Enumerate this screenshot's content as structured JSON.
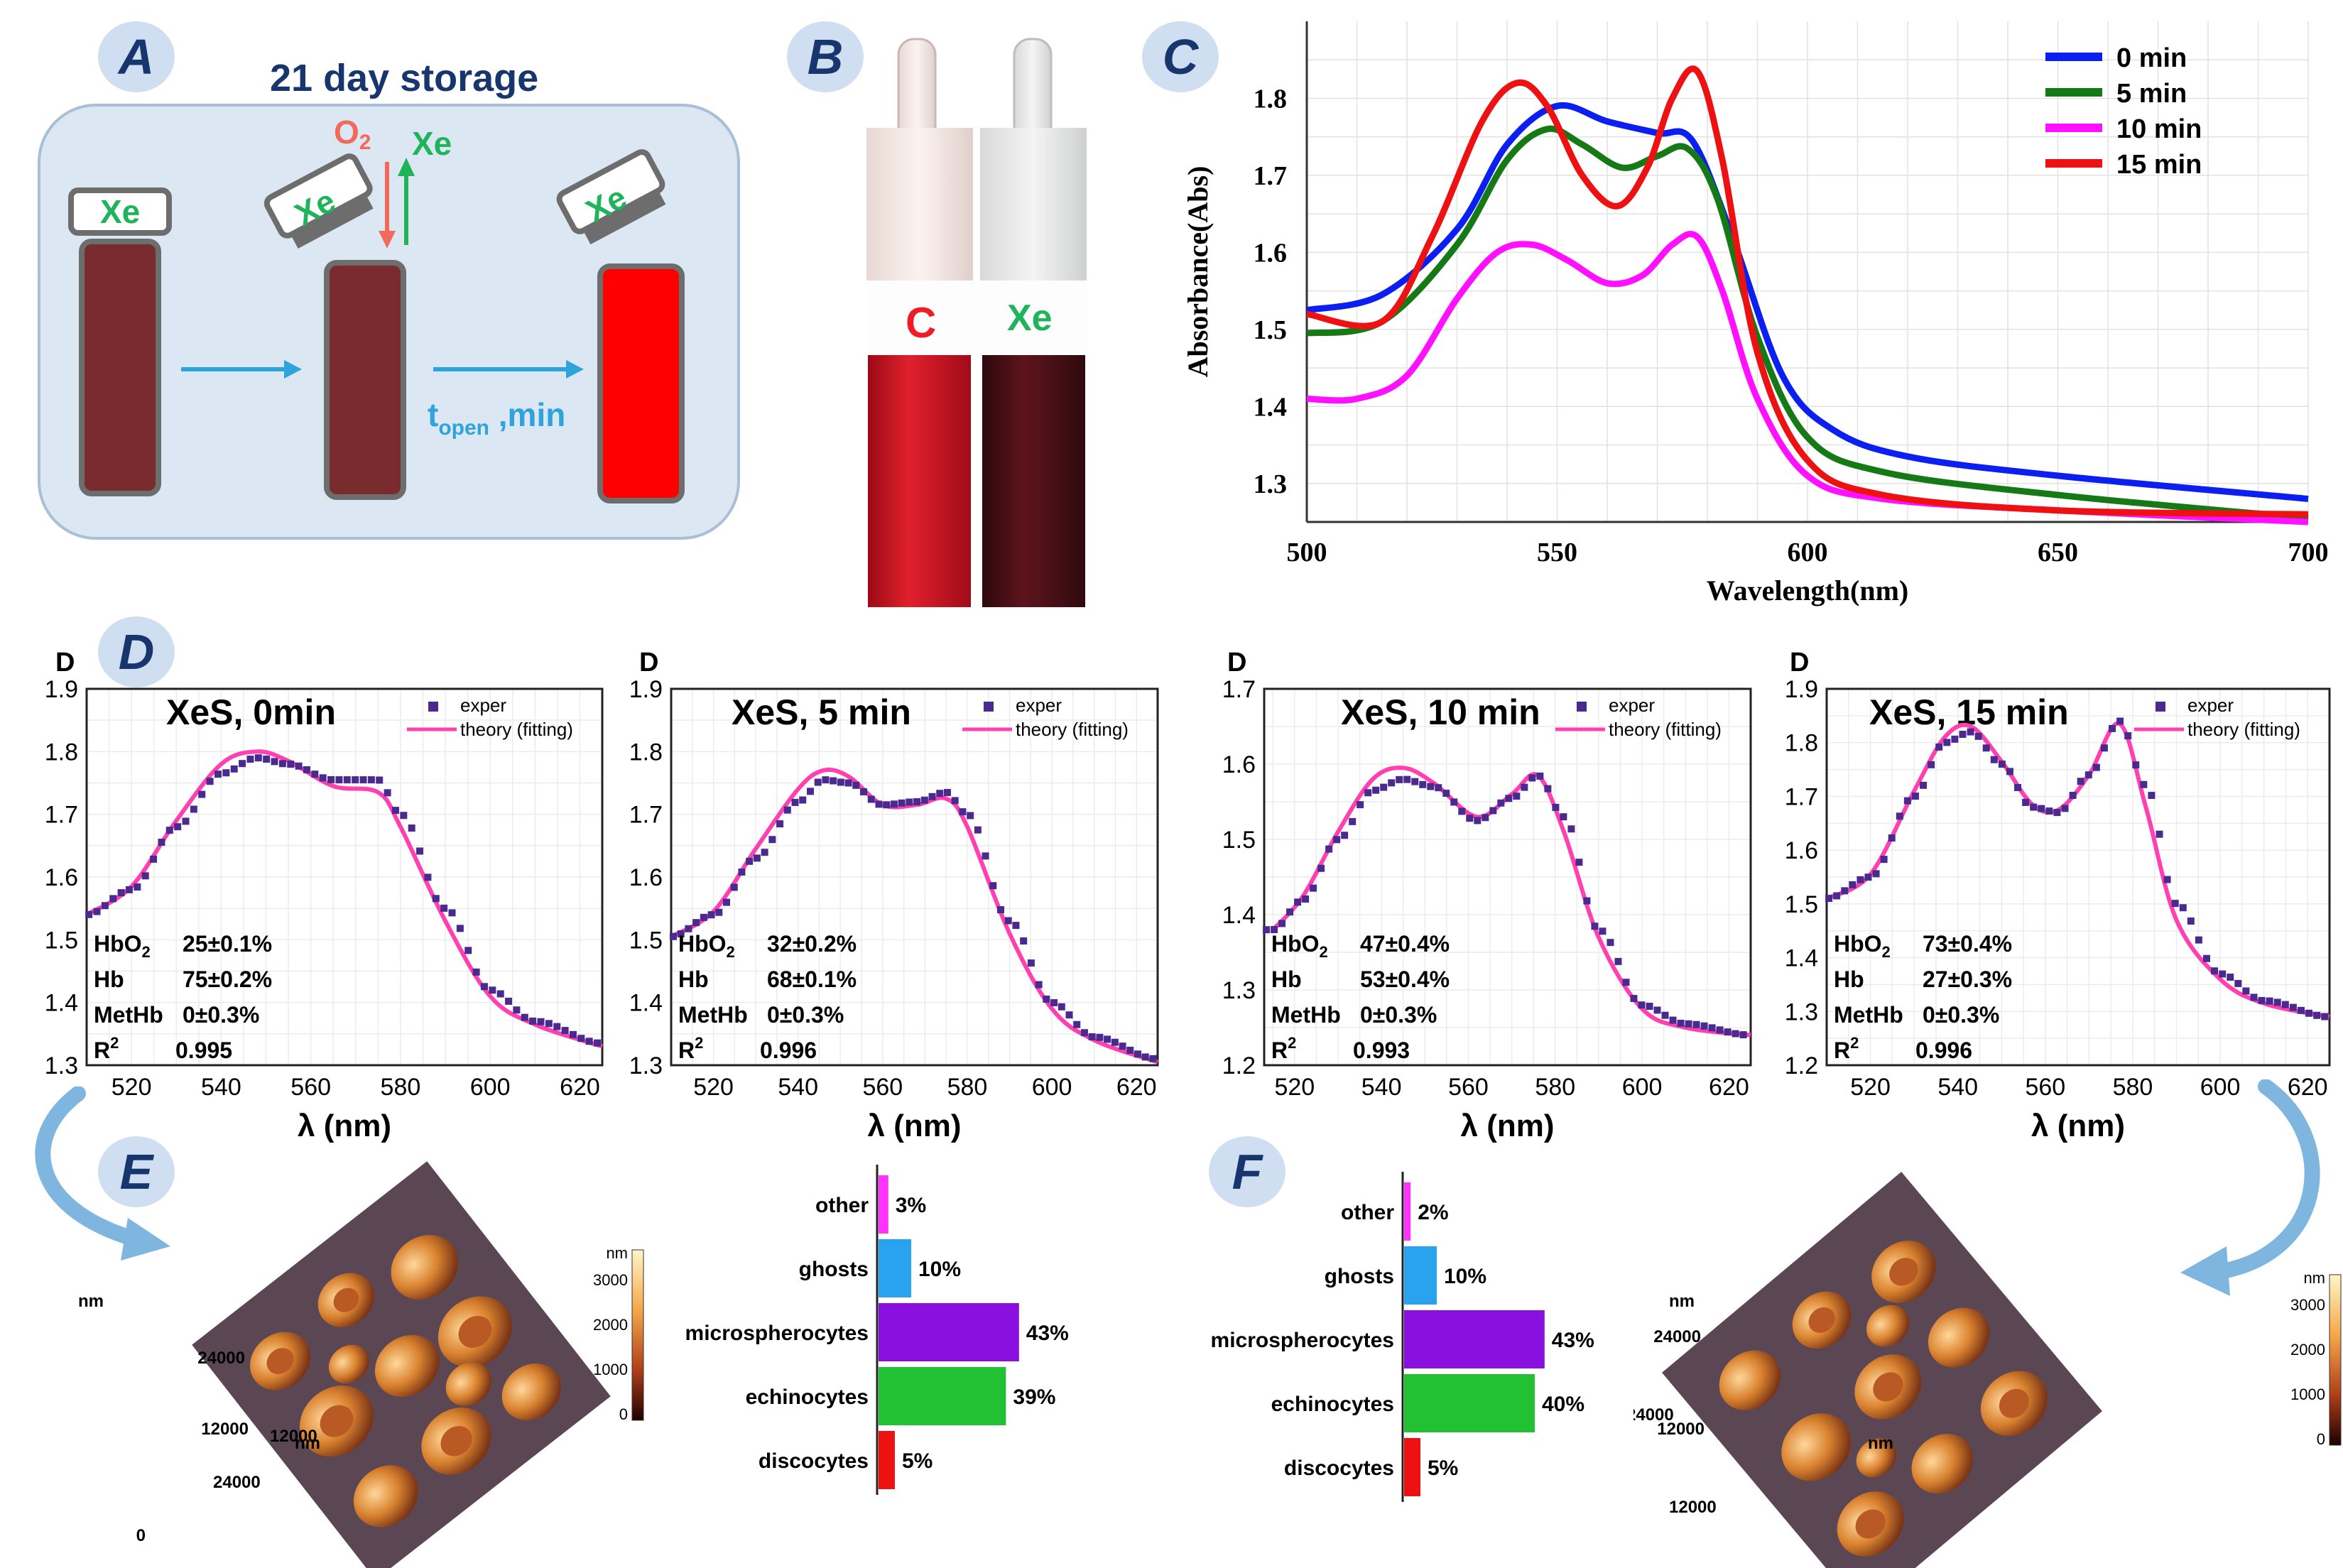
{
  "colors": {
    "xe_green": "#1fb35a",
    "o2_red": "#f26a5a",
    "arrow_blue": "#2ea3dc",
    "badge_bg": "#cfdff1",
    "badge_text": "#17366e",
    "dark_blood": "#7a2b2d",
    "bright_red": "#ff0000",
    "magenta": "#ff40b0",
    "exper": "#4b2a8f"
  },
  "panel_labels": {
    "A": "A",
    "B": "B",
    "C": "C",
    "D": "D",
    "E": "E",
    "F": "F"
  },
  "panelA": {
    "title": "21  day storage",
    "xe": "Xe",
    "o2": "O",
    "o2_sub": "2",
    "t": "t",
    "t_sub": "open",
    "t_unit": " ,min"
  },
  "panelB": {
    "left_label": "C",
    "right_label": "Xe"
  },
  "chart_data": [
    {
      "id": "C",
      "type": "line",
      "title": "",
      "xlabel": "Wavelength(nm)",
      "ylabel": "Absorbance(Abs)",
      "xlim": [
        500,
        700
      ],
      "ylim": [
        1.25,
        1.9
      ],
      "xticks": [
        500,
        550,
        600,
        650,
        700
      ],
      "yticks": [
        1.3,
        1.4,
        1.5,
        1.6,
        1.7,
        1.8
      ],
      "legend": "top-right",
      "series": [
        {
          "name": "0 min",
          "color": "#0b1ff0",
          "x": [
            500,
            515,
            530,
            540,
            550,
            560,
            570,
            577,
            585,
            595,
            605,
            620,
            650,
            700
          ],
          "y": [
            1.525,
            1.545,
            1.63,
            1.74,
            1.79,
            1.77,
            1.755,
            1.745,
            1.62,
            1.44,
            1.37,
            1.335,
            1.31,
            1.28
          ]
        },
        {
          "name": "5 min",
          "color": "#157a15",
          "x": [
            500,
            515,
            530,
            540,
            548,
            555,
            563,
            570,
            576,
            582,
            590,
            600,
            615,
            650,
            700
          ],
          "y": [
            1.495,
            1.51,
            1.61,
            1.72,
            1.76,
            1.74,
            1.71,
            1.725,
            1.735,
            1.67,
            1.49,
            1.36,
            1.315,
            1.285,
            1.255
          ]
        },
        {
          "name": "10 min",
          "color": "#ff10ff",
          "x": [
            500,
            510,
            520,
            530,
            538,
            545,
            552,
            560,
            567,
            573,
            578,
            583,
            590,
            600,
            615,
            650,
            700
          ],
          "y": [
            1.41,
            1.41,
            1.44,
            1.54,
            1.6,
            1.61,
            1.59,
            1.56,
            1.57,
            1.61,
            1.62,
            1.55,
            1.41,
            1.31,
            1.28,
            1.265,
            1.25
          ]
        },
        {
          "name": "15 min",
          "color": "#ee1111",
          "x": [
            500,
            515,
            525,
            535,
            542,
            548,
            555,
            562,
            568,
            573,
            578,
            583,
            590,
            600,
            615,
            650,
            700
          ],
          "y": [
            1.52,
            1.51,
            1.62,
            1.77,
            1.82,
            1.79,
            1.7,
            1.66,
            1.71,
            1.8,
            1.835,
            1.72,
            1.47,
            1.33,
            1.285,
            1.265,
            1.26
          ]
        }
      ]
    },
    {
      "id": "D1",
      "type": "line",
      "title": "XeS, 0min",
      "xlabel": "λ (nm)",
      "ylabel": "D",
      "xlim": [
        510,
        625
      ],
      "ylim": [
        1.3,
        1.9
      ],
      "xticks": [
        520,
        540,
        560,
        580,
        600,
        620
      ],
      "yticks": [
        1.3,
        1.4,
        1.5,
        1.6,
        1.7,
        1.8,
        1.9
      ],
      "legend": "top-right",
      "legend_exper": "exper",
      "legend_theory": "theory (fitting)",
      "series": [
        {
          "name": "exper",
          "x": [
            510,
            520,
            530,
            540,
            548,
            555,
            565,
            575,
            580,
            590,
            600,
            610,
            625
          ],
          "y": [
            1.54,
            1.58,
            1.68,
            1.765,
            1.79,
            1.78,
            1.755,
            1.755,
            1.7,
            1.55,
            1.42,
            1.37,
            1.335
          ]
        },
        {
          "name": "theory (fitting)",
          "x": [
            510,
            520,
            530,
            540,
            548,
            555,
            565,
            575,
            580,
            590,
            600,
            610,
            625
          ],
          "y": [
            1.54,
            1.585,
            1.69,
            1.78,
            1.8,
            1.785,
            1.745,
            1.735,
            1.68,
            1.53,
            1.41,
            1.365,
            1.33
          ]
        }
      ],
      "fit": [
        {
          "label": "HbO",
          "sub": "2",
          "value": "25±0.1%"
        },
        {
          "label": "Hb",
          "sub": "",
          "value": "75±0.2%"
        },
        {
          "label": "MetHb",
          "sub": "",
          "value": "0±0.3%"
        },
        {
          "label": "R",
          "sup": "2",
          "value": "0.995"
        }
      ]
    },
    {
      "id": "D2",
      "type": "line",
      "title": "XeS, 5 min",
      "xlabel": "λ (nm)",
      "ylabel": "D",
      "xlim": [
        510,
        625
      ],
      "ylim": [
        1.3,
        1.9
      ],
      "xticks": [
        520,
        540,
        560,
        580,
        600,
        620
      ],
      "yticks": [
        1.3,
        1.4,
        1.5,
        1.6,
        1.7,
        1.8,
        1.9
      ],
      "legend": "top-right",
      "legend_exper": "exper",
      "legend_theory": "theory (fitting)",
      "series": [
        {
          "name": "exper",
          "x": [
            510,
            520,
            530,
            540,
            546,
            552,
            560,
            568,
            575,
            580,
            590,
            600,
            610,
            625
          ],
          "y": [
            1.505,
            1.54,
            1.63,
            1.72,
            1.755,
            1.75,
            1.715,
            1.72,
            1.735,
            1.7,
            1.53,
            1.4,
            1.345,
            1.31
          ]
        },
        {
          "name": "theory (fitting)",
          "x": [
            510,
            520,
            530,
            540,
            546,
            552,
            560,
            568,
            575,
            580,
            590,
            600,
            610,
            625
          ],
          "y": [
            1.505,
            1.545,
            1.645,
            1.74,
            1.77,
            1.76,
            1.715,
            1.715,
            1.725,
            1.68,
            1.51,
            1.39,
            1.34,
            1.305
          ]
        }
      ],
      "fit": [
        {
          "label": "HbO",
          "sub": "2",
          "value": "32±0.2%"
        },
        {
          "label": "Hb",
          "sub": "",
          "value": "68±0.1%"
        },
        {
          "label": "MetHb",
          "sub": "",
          "value": "0±0.3%"
        },
        {
          "label": "R",
          "sup": "2",
          "value": "0.996"
        }
      ]
    },
    {
      "id": "D3",
      "type": "line",
      "title": "XeS, 10 min",
      "xlabel": "λ (nm)",
      "ylabel": "D",
      "xlim": [
        513,
        625
      ],
      "ylim": [
        1.2,
        1.7
      ],
      "xticks": [
        520,
        540,
        560,
        580,
        600,
        620
      ],
      "yticks": [
        1.2,
        1.3,
        1.4,
        1.5,
        1.6,
        1.7
      ],
      "legend": "top-right",
      "legend_exper": "exper",
      "legend_theory": "theory (fitting)",
      "series": [
        {
          "name": "exper",
          "x": [
            515,
            522,
            530,
            538,
            545,
            552,
            562,
            570,
            576,
            582,
            590,
            600,
            610,
            625
          ],
          "y": [
            1.38,
            1.42,
            1.5,
            1.565,
            1.58,
            1.57,
            1.525,
            1.555,
            1.585,
            1.53,
            1.38,
            1.28,
            1.255,
            1.24
          ]
        },
        {
          "name": "theory (fitting)",
          "x": [
            515,
            522,
            530,
            538,
            545,
            552,
            562,
            570,
            576,
            582,
            590,
            600,
            610,
            625
          ],
          "y": [
            1.38,
            1.425,
            1.51,
            1.58,
            1.595,
            1.575,
            1.53,
            1.56,
            1.585,
            1.51,
            1.37,
            1.275,
            1.25,
            1.24
          ]
        }
      ],
      "fit": [
        {
          "label": "HbO",
          "sub": "2",
          "value": "47±0.4%"
        },
        {
          "label": "Hb",
          "sub": "",
          "value": "53±0.4%"
        },
        {
          "label": "MetHb",
          "sub": "",
          "value": "0±0.3%"
        },
        {
          "label": "R",
          "sup": "2",
          "value": "0.993"
        }
      ]
    },
    {
      "id": "D4",
      "type": "line",
      "title": "XeS, 15 min",
      "xlabel": "λ (nm)",
      "ylabel": "D",
      "xlim": [
        510,
        625
      ],
      "ylim": [
        1.2,
        1.9
      ],
      "xticks": [
        520,
        540,
        560,
        580,
        600,
        620
      ],
      "yticks": [
        1.2,
        1.3,
        1.4,
        1.5,
        1.6,
        1.7,
        1.8,
        1.9
      ],
      "legend": "top-right",
      "legend_exper": "exper",
      "legend_theory": "theory (fitting)",
      "series": [
        {
          "name": "exper",
          "x": [
            510,
            520,
            530,
            537,
            543,
            550,
            557,
            563,
            570,
            577,
            583,
            590,
            600,
            610,
            625
          ],
          "y": [
            1.51,
            1.55,
            1.7,
            1.8,
            1.82,
            1.76,
            1.68,
            1.67,
            1.74,
            1.84,
            1.72,
            1.5,
            1.37,
            1.32,
            1.29
          ]
        },
        {
          "name": "theory (fitting)",
          "x": [
            510,
            520,
            530,
            537,
            543,
            550,
            557,
            563,
            570,
            577,
            583,
            590,
            600,
            610,
            625
          ],
          "y": [
            1.51,
            1.555,
            1.71,
            1.81,
            1.83,
            1.765,
            1.685,
            1.675,
            1.74,
            1.835,
            1.68,
            1.47,
            1.36,
            1.315,
            1.29
          ]
        }
      ],
      "fit": [
        {
          "label": "HbO",
          "sub": "2",
          "value": "73±0.4%"
        },
        {
          "label": "Hb",
          "sub": "",
          "value": "27±0.3%"
        },
        {
          "label": "MetHb",
          "sub": "",
          "value": "0±0.3%"
        },
        {
          "label": "R",
          "sup": "2",
          "value": "0.996"
        }
      ]
    },
    {
      "id": "E_bar",
      "type": "bar",
      "orientation": "horizontal",
      "xlim": [
        0,
        100
      ],
      "categories": [
        "other",
        "ghosts",
        "microspherocytes",
        "echinocytes",
        "discocytes"
      ],
      "values": [
        3,
        10,
        43,
        39,
        5
      ],
      "labels": [
        "3%",
        "10%",
        "43%",
        "39%",
        "5%"
      ],
      "colors": [
        "#ff33ff",
        "#29a3f0",
        "#8a10e0",
        "#22c033",
        "#ee1111"
      ]
    },
    {
      "id": "F_bar",
      "type": "bar",
      "orientation": "horizontal",
      "xlim": [
        0,
        100
      ],
      "categories": [
        "other",
        "ghosts",
        "microspherocytes",
        "echinocytes",
        "discocytes"
      ],
      "values": [
        2,
        10,
        43,
        40,
        5
      ],
      "labels": [
        "2%",
        "10%",
        "43%",
        "40%",
        "5%"
      ],
      "colors": [
        "#ff33ff",
        "#29a3f0",
        "#8a10e0",
        "#22c033",
        "#ee1111"
      ]
    },
    {
      "id": "afm",
      "type": "heatmap",
      "unit": "nm",
      "colorbar_ticks": [
        "3000",
        "2000",
        "1000",
        "0"
      ],
      "axis_ticks": [
        "24000",
        "12000",
        "0"
      ]
    }
  ]
}
